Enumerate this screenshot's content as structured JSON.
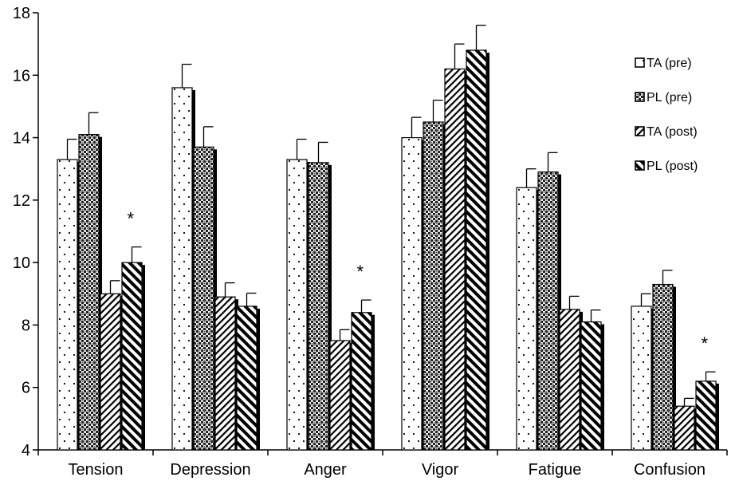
{
  "chart_data": {
    "type": "bar",
    "title": "",
    "xlabel": "",
    "ylabel": "",
    "ylim": [
      4,
      18
    ],
    "yticks": [
      4,
      6,
      8,
      10,
      12,
      14,
      16,
      18
    ],
    "grid": false,
    "legend_position": "top-right",
    "categories": [
      "Tension",
      "Depression",
      "Anger",
      "Vigor",
      "Fatigue",
      "Confusion"
    ],
    "series": [
      {
        "name": "TA (pre)",
        "pattern": "dots",
        "values": [
          13.3,
          15.6,
          13.3,
          14.0,
          12.4,
          8.6
        ],
        "errors": [
          0.65,
          0.75,
          0.65,
          0.65,
          0.6,
          0.4
        ]
      },
      {
        "name": "PL (pre)",
        "pattern": "checker",
        "values": [
          14.1,
          13.7,
          13.2,
          14.5,
          12.9,
          9.3
        ],
        "errors": [
          0.7,
          0.65,
          0.65,
          0.7,
          0.62,
          0.45
        ]
      },
      {
        "name": "TA (post)",
        "pattern": "hatch-back",
        "values": [
          9.0,
          8.9,
          7.5,
          16.2,
          8.5,
          5.4
        ],
        "errors": [
          0.42,
          0.45,
          0.35,
          0.8,
          0.42,
          0.25
        ]
      },
      {
        "name": "PL (post)",
        "pattern": "hatch-forward",
        "values": [
          10.0,
          8.6,
          8.4,
          16.8,
          8.1,
          6.2
        ],
        "errors": [
          0.5,
          0.42,
          0.4,
          0.8,
          0.38,
          0.3
        ]
      }
    ],
    "annotations": [
      {
        "text": "*",
        "category": "Tension"
      },
      {
        "text": "*",
        "category": "Anger"
      },
      {
        "text": "*",
        "category": "Confusion"
      }
    ]
  }
}
